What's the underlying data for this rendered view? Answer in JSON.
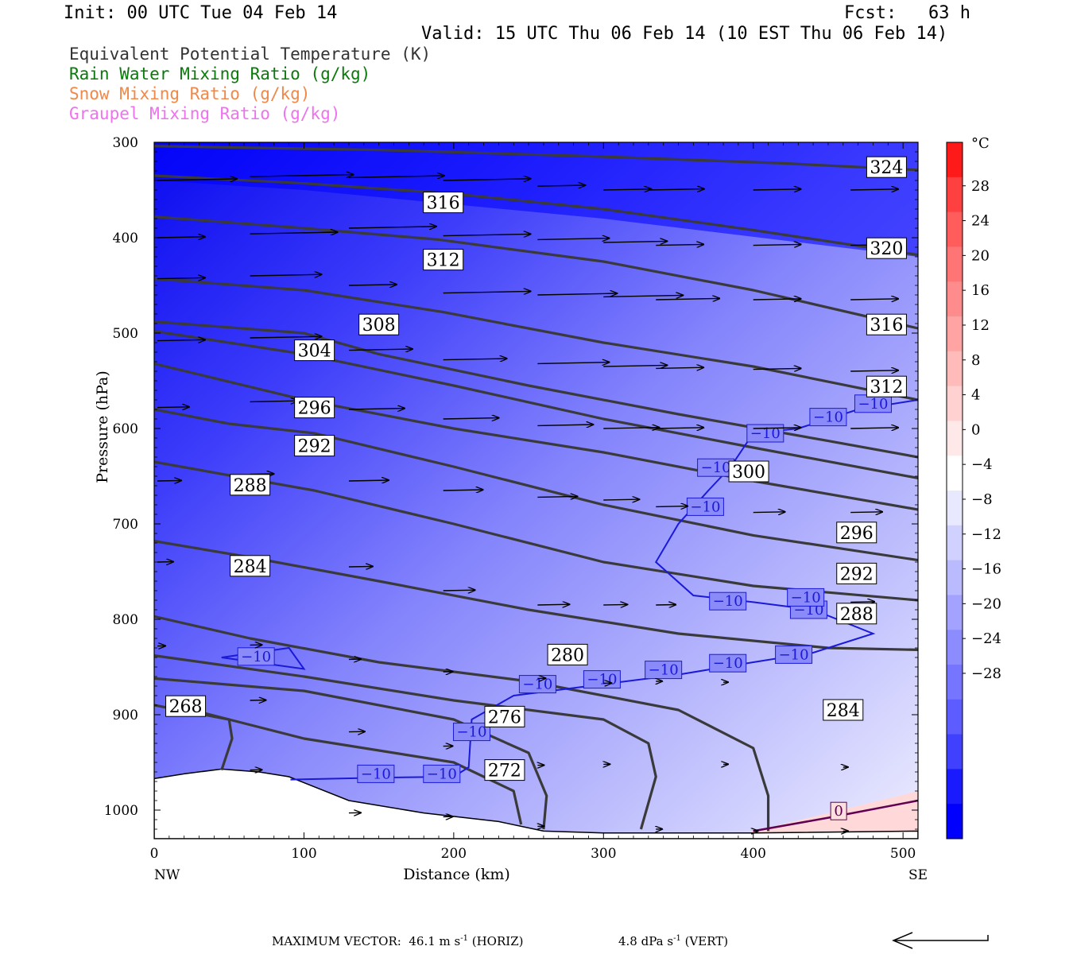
{
  "header": {
    "init": "Init: 00 UTC Tue 04 Feb 14",
    "fcst": "Fcst:   63 h",
    "valid": "Valid: 15 UTC Thu 06 Feb 14 (10 EST Thu 06 Feb 14)"
  },
  "legend": [
    {
      "text": "Equivalent Potential Temperature (K)",
      "color": "#333333"
    },
    {
      "text": "Rain Water Mixing Ratio (g/kg)",
      "color": "#0a7a0a"
    },
    {
      "text": "Snow Mixing Ratio (g/kg)",
      "color": "#f0884a"
    },
    {
      "text": "Graupel Mixing Ratio (g/kg)",
      "color": "#ee72ee"
    }
  ],
  "footer": {
    "max_vector": "MAXIMUM VECTOR:  46.1 m s",
    "max_vector_unit": "-1",
    "horiz": " (HORIZ)",
    "vert": "4.8 dPa s",
    "vert_unit": "-1",
    "vert_tag": " (VERT)"
  },
  "chart_data": {
    "type": "cross-section",
    "xlabel": "Distance (km)",
    "ylabel": "Pressure (hPa)",
    "x_ticks": [
      0,
      100,
      200,
      300,
      400,
      500
    ],
    "x_end_labels": [
      "NW",
      "SE"
    ],
    "y_ticks": [
      300,
      400,
      500,
      600,
      700,
      800,
      900,
      1000
    ],
    "xlim": [
      0,
      510
    ],
    "ylim": [
      300,
      1030
    ],
    "colorbar": {
      "unit": "°C",
      "ticks": [
        28,
        24,
        20,
        16,
        12,
        8,
        4,
        0,
        -4,
        -8,
        -12,
        -16,
        -20,
        -24,
        -28
      ],
      "colors_top_to_bottom": [
        "#ff1a1a",
        "#ff4040",
        "#ff5c5c",
        "#ff7575",
        "#ff8c8c",
        "#ffa3a3",
        "#ffbaba",
        "#ffd1d1",
        "#ffe8e8",
        "#ffffff",
        "#e8e8ff",
        "#d1d1ff",
        "#babaff",
        "#a3a3ff",
        "#8c8cff",
        "#7575ff",
        "#5c5cff",
        "#4040ff",
        "#1a1aff",
        "#0000ff"
      ]
    },
    "theta_e_contours": [
      {
        "label": "324",
        "points": [
          [
            0,
            304
          ],
          [
            150,
            308
          ],
          [
            300,
            315
          ],
          [
            420,
            322
          ],
          [
            510,
            329
          ]
        ],
        "label_at": [
          489,
          326
        ]
      },
      {
        "label": "320",
        "points": [
          [
            0,
            335
          ],
          [
            100,
            343
          ],
          [
            200,
            354
          ],
          [
            300,
            370
          ],
          [
            400,
            392
          ],
          [
            510,
            418
          ]
        ],
        "label_at": [
          489,
          411
        ]
      },
      {
        "label": "316",
        "points": [
          [
            0,
            378
          ],
          [
            100,
            390
          ],
          [
            190,
            402
          ],
          [
            300,
            425
          ],
          [
            400,
            455
          ],
          [
            510,
            495
          ]
        ],
        "label_at": [
          193,
          363
        ]
      },
      {
        "label": "316",
        "points": [
          [
            490,
            492
          ]
        ],
        "label_at": [
          489,
          491
        ]
      },
      {
        "label": "312",
        "points": [
          [
            0,
            443
          ],
          [
            100,
            455
          ],
          [
            193,
            478
          ],
          [
            300,
            510
          ],
          [
            400,
            535
          ],
          [
            510,
            570
          ]
        ],
        "label_at": [
          193,
          423
        ]
      },
      {
        "label": "312",
        "points": [
          [
            490,
            556
          ]
        ],
        "label_at": [
          489,
          556
        ]
      },
      {
        "label": "308",
        "points": [
          [
            0,
            488
          ],
          [
            100,
            500
          ],
          [
            150,
            522
          ],
          [
            250,
            555
          ],
          [
            350,
            585
          ],
          [
            450,
            613
          ],
          [
            510,
            630
          ]
        ],
        "label_at": [
          150,
          491
        ]
      },
      {
        "label": "304",
        "points": [
          [
            0,
            498
          ],
          [
            100,
            522
          ],
          [
            200,
            555
          ],
          [
            300,
            590
          ],
          [
            400,
            620
          ],
          [
            510,
            652
          ]
        ],
        "label_at": [
          107,
          518
        ]
      },
      {
        "label": "300",
        "points": [
          [
            0,
            532
          ],
          [
            100,
            570
          ],
          [
            200,
            600
          ],
          [
            300,
            625
          ],
          [
            400,
            655
          ],
          [
            510,
            685
          ]
        ],
        "label_at": [
          397,
          645
        ]
      },
      {
        "label": "296",
        "points": [
          [
            0,
            580
          ],
          [
            50,
            595
          ],
          [
            107,
            605
          ],
          [
            200,
            640
          ],
          [
            300,
            680
          ],
          [
            400,
            712
          ],
          [
            510,
            738
          ]
        ],
        "label_at": [
          107,
          578
        ]
      },
      {
        "label": "296",
        "points": [
          [
            470,
            710
          ]
        ],
        "label_at": [
          469,
          709
        ]
      },
      {
        "label": "292",
        "points": [
          [
            0,
            635
          ],
          [
            107,
            665
          ],
          [
            200,
            700
          ],
          [
            300,
            740
          ],
          [
            400,
            765
          ],
          [
            510,
            780
          ]
        ],
        "label_at": [
          107,
          618
        ]
      },
      {
        "label": "292",
        "points": [
          [
            470,
            752
          ]
        ],
        "label_at": [
          469,
          752
        ]
      },
      {
        "label": "288",
        "points": [
          [
            0,
            718
          ],
          [
            64,
            735
          ],
          [
            150,
            760
          ],
          [
            250,
            790
          ],
          [
            350,
            815
          ],
          [
            450,
            830
          ],
          [
            510,
            832
          ]
        ],
        "label_at": [
          64,
          659
        ]
      },
      {
        "label": "288",
        "points": [
          [
            470,
            794
          ]
        ],
        "label_at": [
          469,
          794
        ]
      },
      {
        "label": "284",
        "points": [
          [
            0,
            797
          ],
          [
            64,
            820
          ],
          [
            150,
            845
          ],
          [
            250,
            865
          ],
          [
            350,
            895
          ],
          [
            400,
            935
          ],
          [
            410,
            985
          ],
          [
            410,
            1022
          ]
        ],
        "label_at": [
          64,
          744
        ]
      },
      {
        "label": "284",
        "points": [
          [
            460,
            895
          ]
        ],
        "label_at": [
          460,
          895
        ]
      },
      {
        "label": "280",
        "points": [
          [
            0,
            838
          ],
          [
            100,
            860
          ],
          [
            200,
            885
          ],
          [
            300,
            905
          ],
          [
            330,
            930
          ],
          [
            335,
            965
          ],
          [
            325,
            1020
          ]
        ],
        "label_at": [
          276,
          837
        ]
      },
      {
        "label": "276",
        "points": [
          [
            0,
            862
          ],
          [
            100,
            875
          ],
          [
            200,
            905
          ],
          [
            250,
            940
          ],
          [
            262,
            985
          ],
          [
            260,
            1020
          ]
        ],
        "label_at": [
          234,
          902
        ]
      },
      {
        "label": "272",
        "points": [
          [
            0,
            890
          ],
          [
            50,
            905
          ],
          [
            100,
            925
          ],
          [
            200,
            950
          ],
          [
            240,
            980
          ],
          [
            245,
            1015
          ]
        ],
        "label_at": [
          234,
          958
        ]
      },
      {
        "label": "268",
        "points": [
          [
            20,
            893
          ],
          [
            50,
            905
          ],
          [
            52,
            925
          ],
          [
            45,
            958
          ]
        ],
        "label_at": [
          21,
          891
        ]
      }
    ],
    "temperature_contours": [
      {
        "value": -10,
        "label": "−10",
        "color": "#1010d0"
      },
      {
        "value": 0,
        "label": "0",
        "color": "#800040"
      }
    ],
    "wind_vectors": "shown as arrows over the section"
  }
}
